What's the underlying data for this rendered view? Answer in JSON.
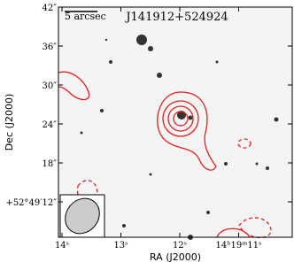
{
  "chart_data": {
    "type": "image",
    "title": "J141912+524924",
    "scale_label": "5 arcsec",
    "xlabel": "RA (J2000)",
    "ylabel": "Dec (J2000)",
    "xlim": [
      14.06,
      10.09
    ],
    "ylim": [
      6.55,
      42
    ],
    "xticks": [
      {
        "value": 14,
        "label": "14ˢ"
      },
      {
        "value": 13,
        "label": "13ˢ"
      },
      {
        "value": 12,
        "label": "12ˢ"
      },
      {
        "value": 11,
        "label": "14ʰ19ᵐ11ˢ"
      }
    ],
    "yticks": [
      {
        "value": 42,
        "label": "42″"
      },
      {
        "value": 36,
        "label": "36″"
      },
      {
        "value": 30,
        "label": "30″"
      },
      {
        "value": 24,
        "label": "24″"
      },
      {
        "value": 18,
        "label": "18″"
      },
      {
        "value": 12,
        "label": "+52°49′12″"
      }
    ]
  }
}
